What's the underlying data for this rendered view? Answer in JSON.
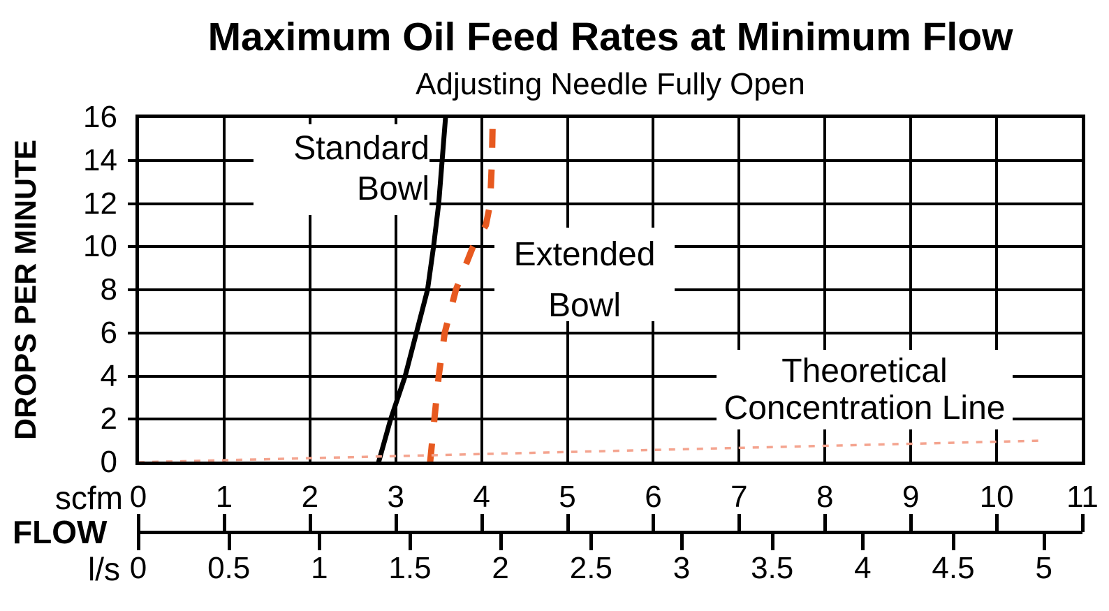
{
  "title": "Maximum Oil Feed Rates at Minimum Flow",
  "subtitle": "Adjusting Needle Fully Open",
  "y_axis": {
    "label": "DROPS PER MINUTE",
    "min": 0,
    "max": 16,
    "ticks": [
      0,
      2,
      4,
      6,
      8,
      10,
      12,
      14,
      16
    ]
  },
  "x_axis": {
    "flow_label": "FLOW",
    "scfm": {
      "unit": "scfm",
      "min": 0,
      "max": 11,
      "ticks": [
        0,
        1,
        2,
        3,
        4,
        5,
        6,
        7,
        8,
        9,
        10,
        11
      ]
    },
    "ls": {
      "unit": "l/s",
      "ticks": [
        0,
        0.5,
        1,
        1.5,
        2,
        2.5,
        3,
        3.5,
        4,
        4.5,
        5
      ],
      "scfm_per_unit": 2.11
    }
  },
  "annotations": {
    "standard_bowl": {
      "line1": "Standard",
      "line2": "Bowl"
    },
    "extended_bowl": {
      "line1": "Extended",
      "line2": "Bowl"
    },
    "theoretical": {
      "line1": "Theoretical",
      "line2": "Concentration Line"
    }
  },
  "colors": {
    "extended_bowl_dash": "#E7591F",
    "theoretical_line": "#F4A48F",
    "grid_and_text": "#000000"
  },
  "chart_data": {
    "type": "line",
    "title": "Maximum Oil Feed Rates at Minimum Flow",
    "subtitle": "Adjusting Needle Fully Open",
    "xlabel": "FLOW (scfm top scale, l/s bottom scale)",
    "ylabel": "DROPS PER MINUTE",
    "xlim": [
      0,
      11
    ],
    "ylim": [
      0,
      16
    ],
    "grid": true,
    "legend_position": "inline-annotations",
    "series": [
      {
        "name": "Standard Bowl",
        "style": "solid",
        "color": "#000000",
        "points": [
          [
            2.8,
            0
          ],
          [
            2.94,
            2
          ],
          [
            3.11,
            4
          ],
          [
            3.24,
            6
          ],
          [
            3.37,
            8
          ],
          [
            3.44,
            10
          ],
          [
            3.5,
            12
          ],
          [
            3.54,
            14
          ],
          [
            3.58,
            16
          ]
        ]
      },
      {
        "name": "Extended Bowl",
        "style": "dashed",
        "color": "#E7591F",
        "points": [
          [
            3.4,
            0
          ],
          [
            3.45,
            2
          ],
          [
            3.5,
            4
          ],
          [
            3.57,
            6
          ],
          [
            3.7,
            8
          ],
          [
            3.9,
            10
          ],
          [
            4.05,
            11
          ],
          [
            4.1,
            12
          ],
          [
            4.12,
            14
          ],
          [
            4.13,
            16
          ]
        ]
      },
      {
        "name": "Theoretical Concentration Line",
        "style": "dotted",
        "color": "#F4A48F",
        "points": [
          [
            0,
            0
          ],
          [
            10.5,
            1.0
          ]
        ]
      }
    ]
  }
}
